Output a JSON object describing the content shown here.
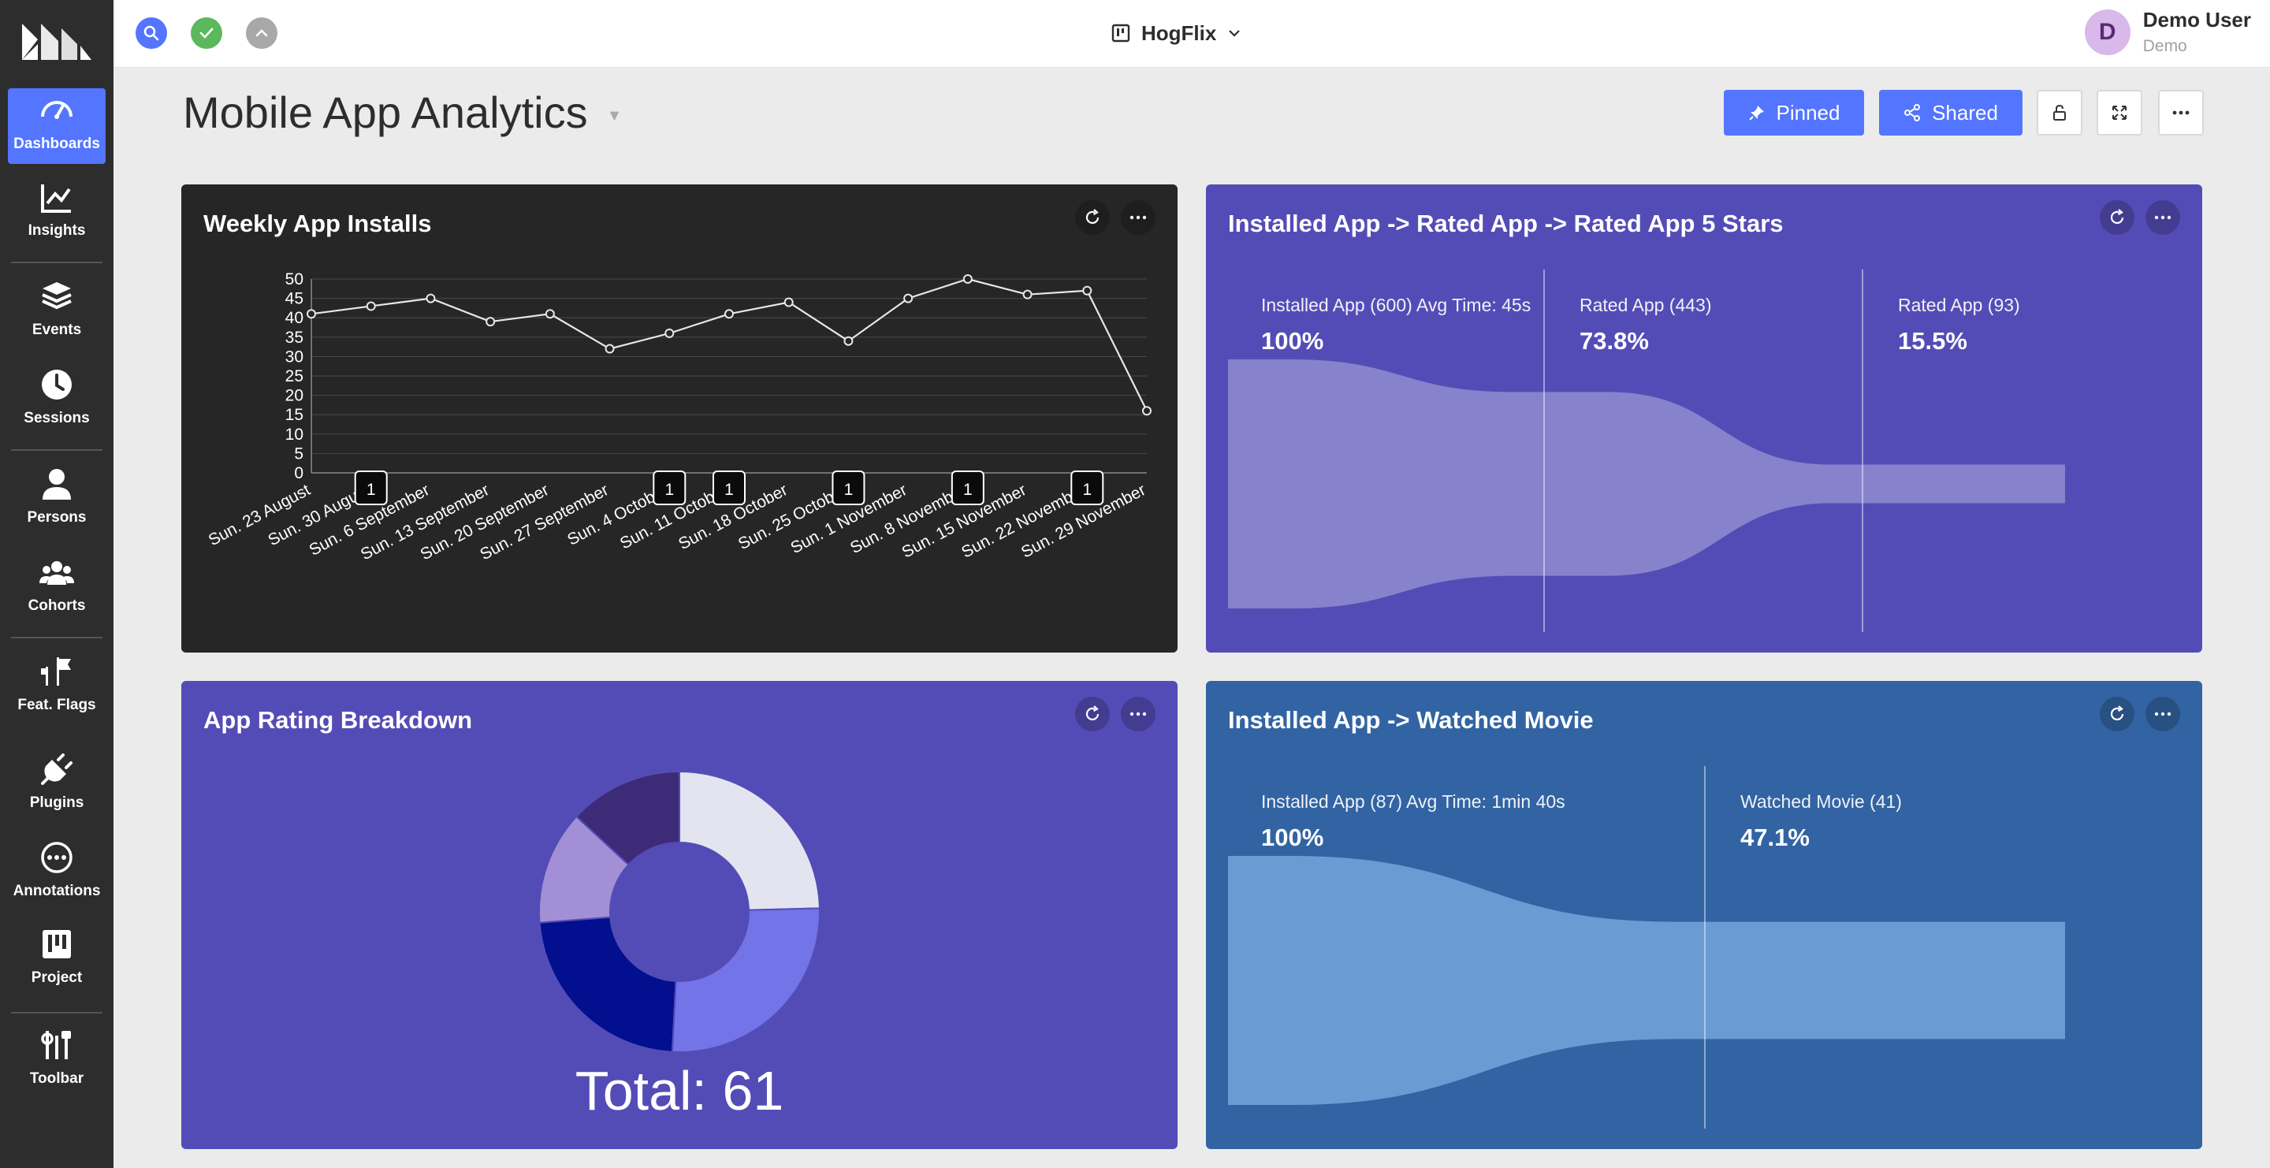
{
  "sidebar": {
    "items": [
      {
        "label": "Dashboards",
        "icon": "dashboard-icon",
        "active": true
      },
      {
        "label": "Insights",
        "icon": "insights-icon"
      },
      {
        "label": "Events",
        "icon": "events-icon"
      },
      {
        "label": "Sessions",
        "icon": "sessions-icon"
      },
      {
        "label": "Persons",
        "icon": "persons-icon"
      },
      {
        "label": "Cohorts",
        "icon": "cohorts-icon"
      },
      {
        "label": "Feat. Flags",
        "icon": "flags-icon"
      },
      {
        "label": "Plugins",
        "icon": "plugins-icon"
      },
      {
        "label": "Annotations",
        "icon": "annotations-icon"
      },
      {
        "label": "Project",
        "icon": "project-icon"
      },
      {
        "label": "Toolbar",
        "icon": "toolbar-icon"
      }
    ]
  },
  "topbar": {
    "project": "HogFlix",
    "user_initial": "D",
    "user_name": "Demo User",
    "user_org": "Demo"
  },
  "dashboard": {
    "title": "Mobile App Analytics",
    "pinned_label": "Pinned",
    "shared_label": "Shared"
  },
  "colors": {
    "accent": "#5375ff",
    "dark_card": "#262626",
    "purple_card": "#544cb6",
    "blue_card": "#3264a3"
  },
  "cards": {
    "installs": {
      "title": "Weekly App Installs",
      "chart_data": {
        "type": "line",
        "x": [
          "Sun. 23 August",
          "Sun. 30 August",
          "Sun. 6 September",
          "Sun. 13 September",
          "Sun. 20 September",
          "Sun. 27 September",
          "Sun. 4 October",
          "Sun. 11 October",
          "Sun. 18 October",
          "Sun. 25 October",
          "Sun. 1 November",
          "Sun. 8 November",
          "Sun. 15 November",
          "Sun. 22 November",
          "Sun. 29 November"
        ],
        "values": [
          41,
          43,
          45,
          39,
          41,
          32,
          36,
          41,
          44,
          34,
          45,
          50,
          46,
          47,
          16
        ],
        "yticks": [
          0,
          5,
          10,
          15,
          20,
          25,
          30,
          35,
          40,
          45,
          50
        ],
        "ylim": [
          0,
          50
        ],
        "grid": true,
        "annotations": [
          {
            "x": "Sun. 30 August",
            "label": "1"
          },
          {
            "x": "Sun. 4 October",
            "label": "1"
          },
          {
            "x": "Sun. 11 October",
            "label": "1"
          },
          {
            "x": "Sun. 25 October",
            "label": "1"
          },
          {
            "x": "Sun. 8 November",
            "label": "1"
          },
          {
            "x": "Sun. 22 November",
            "label": "1"
          }
        ]
      }
    },
    "funnel_rated": {
      "title": "Installed App -> Rated App -> Rated App 5 Stars",
      "steps": [
        {
          "label": "Installed App (600) Avg Time: 45s",
          "pct": "100%",
          "value": 100
        },
        {
          "label": "Rated App (443)",
          "pct": "73.8%",
          "value": 73.8
        },
        {
          "label": "Rated App (93)",
          "pct": "15.5%",
          "value": 15.5
        }
      ]
    },
    "rating": {
      "title": "App Rating Breakdown",
      "total_label": "Total: 61",
      "chart_data": {
        "type": "pie",
        "values": [
          15,
          16,
          14,
          8,
          8
        ],
        "colors": [
          "#e4e4f1",
          "#7274e8",
          "#02108f",
          "#a38fd6",
          "#3d2b78"
        ]
      }
    },
    "funnel_movie": {
      "title": "Installed App -> Watched Movie",
      "steps": [
        {
          "label": "Installed App (87) Avg Time: 1min 40s",
          "pct": "100%",
          "value": 100
        },
        {
          "label": "Watched Movie (41)",
          "pct": "47.1%",
          "value": 47.1
        }
      ]
    }
  }
}
